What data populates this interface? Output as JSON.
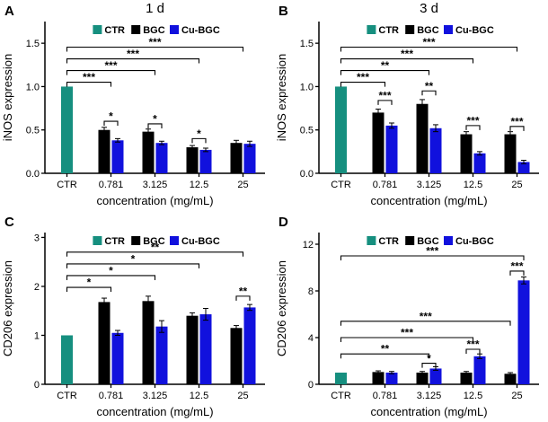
{
  "figure": {
    "background": "#ffffff",
    "colors": {
      "ctr": "#168f7f",
      "bgc": "#000000",
      "cu_bgc": "#1111dd"
    }
  },
  "chart_data": [
    {
      "id": "A",
      "panel_letter": "A",
      "title": "1 d",
      "type": "bar",
      "ylabel": "iNOS expression",
      "xlabel": "concentration (mg/mL)",
      "ylim": [
        0,
        1.75
      ],
      "grid": false,
      "legend_position": "top-inside",
      "yticks": [
        {
          "v": 0,
          "label": "0.0"
        },
        {
          "v": 0.5,
          "label": "0.5"
        },
        {
          "v": 1.0,
          "label": "1.0"
        },
        {
          "v": 1.5,
          "label": "1.5"
        }
      ],
      "categories": [
        "CTR",
        "0.781",
        "3.125",
        "12.5",
        "25"
      ],
      "series": [
        {
          "name": "CTR",
          "color": "#168f7f",
          "values": [
            1.0,
            null,
            null,
            null,
            null
          ],
          "errors": [
            0,
            null,
            null,
            null,
            null
          ]
        },
        {
          "name": "BGC",
          "color": "#000000",
          "values": [
            null,
            0.5,
            0.48,
            0.3,
            0.35
          ],
          "errors": [
            null,
            0.03,
            0.03,
            0.02,
            0.03
          ]
        },
        {
          "name": "Cu-BGC",
          "color": "#1111dd",
          "values": [
            null,
            0.38,
            0.35,
            0.27,
            0.34
          ],
          "errors": [
            null,
            0.02,
            0.02,
            0.02,
            0.03
          ]
        }
      ],
      "brackets": [
        {
          "c1": 0,
          "s1": 0,
          "c2": 1,
          "s2": 1.5,
          "y": 1.05,
          "label": "***"
        },
        {
          "c1": 0,
          "s1": 0,
          "c2": 2,
          "s2": 1.5,
          "y": 1.185,
          "label": "***"
        },
        {
          "c1": 0,
          "s1": 0,
          "c2": 3,
          "s2": 1.5,
          "y": 1.32,
          "label": "***"
        },
        {
          "c1": 0,
          "s1": 0,
          "c2": 4,
          "s2": 1.5,
          "y": 1.455,
          "label": "***"
        },
        {
          "c1": 1,
          "s1": 1,
          "c2": 1,
          "s2": 2,
          "y": 0.6,
          "label": "*"
        },
        {
          "c1": 2,
          "s1": 1,
          "c2": 2,
          "s2": 2,
          "y": 0.57,
          "label": "*"
        },
        {
          "c1": 3,
          "s1": 1,
          "c2": 3,
          "s2": 2,
          "y": 0.4,
          "label": "*"
        }
      ]
    },
    {
      "id": "B",
      "panel_letter": "B",
      "title": "3 d",
      "type": "bar",
      "ylabel": "iNOS expression",
      "xlabel": "concentration (mg/mL)",
      "ylim": [
        0,
        1.75
      ],
      "grid": false,
      "legend_position": "top-inside",
      "yticks": [
        {
          "v": 0,
          "label": "0.0"
        },
        {
          "v": 0.5,
          "label": "0.5"
        },
        {
          "v": 1.0,
          "label": "1.0"
        },
        {
          "v": 1.5,
          "label": "1.5"
        }
      ],
      "categories": [
        "CTR",
        "0.781",
        "3.125",
        "12.5",
        "25"
      ],
      "series": [
        {
          "name": "CTR",
          "color": "#168f7f",
          "values": [
            1.0,
            null,
            null,
            null,
            null
          ],
          "errors": [
            0,
            null,
            null,
            null,
            null
          ]
        },
        {
          "name": "BGC",
          "color": "#000000",
          "values": [
            null,
            0.7,
            0.8,
            0.45,
            0.45
          ],
          "errors": [
            null,
            0.04,
            0.05,
            0.03,
            0.03
          ]
        },
        {
          "name": "Cu-BGC",
          "color": "#1111dd",
          "values": [
            null,
            0.55,
            0.52,
            0.23,
            0.13
          ],
          "errors": [
            null,
            0.03,
            0.04,
            0.02,
            0.02
          ]
        }
      ],
      "brackets": [
        {
          "c1": 0,
          "s1": 0,
          "c2": 1,
          "s2": 1.5,
          "y": 1.05,
          "label": "***"
        },
        {
          "c1": 0,
          "s1": 0,
          "c2": 2,
          "s2": 1.5,
          "y": 1.185,
          "label": "**"
        },
        {
          "c1": 0,
          "s1": 0,
          "c2": 3,
          "s2": 1.5,
          "y": 1.32,
          "label": "***"
        },
        {
          "c1": 0,
          "s1": 0,
          "c2": 4,
          "s2": 1.5,
          "y": 1.455,
          "label": "***"
        },
        {
          "c1": 1,
          "s1": 1,
          "c2": 1,
          "s2": 2,
          "y": 0.84,
          "label": "***"
        },
        {
          "c1": 2,
          "s1": 1,
          "c2": 2,
          "s2": 2,
          "y": 0.95,
          "label": "**"
        },
        {
          "c1": 3,
          "s1": 1,
          "c2": 3,
          "s2": 2,
          "y": 0.55,
          "label": "***"
        },
        {
          "c1": 4,
          "s1": 1,
          "c2": 4,
          "s2": 2,
          "y": 0.54,
          "label": "***"
        }
      ]
    },
    {
      "id": "C",
      "panel_letter": "C",
      "title": "",
      "type": "bar",
      "ylabel": "CD206 expression",
      "xlabel": "concentration (mg/mL)",
      "ylim": [
        0,
        3.1
      ],
      "grid": false,
      "legend_position": "top-inside",
      "yticks": [
        {
          "v": 0,
          "label": "0"
        },
        {
          "v": 1,
          "label": "1"
        },
        {
          "v": 2,
          "label": "2"
        },
        {
          "v": 3,
          "label": "3"
        }
      ],
      "categories": [
        "CTR",
        "0.781",
        "3.125",
        "12.5",
        "25"
      ],
      "series": [
        {
          "name": "CTR",
          "color": "#168f7f",
          "values": [
            1.0,
            null,
            null,
            null,
            null
          ],
          "errors": [
            0,
            null,
            null,
            null,
            null
          ]
        },
        {
          "name": "BGC",
          "color": "#000000",
          "values": [
            null,
            1.68,
            1.7,
            1.4,
            1.15
          ],
          "errors": [
            null,
            0.08,
            0.1,
            0.06,
            0.05
          ]
        },
        {
          "name": "Cu-BGC",
          "color": "#1111dd",
          "values": [
            null,
            1.05,
            1.18,
            1.43,
            1.57
          ],
          "errors": [
            null,
            0.05,
            0.12,
            0.12,
            0.06
          ]
        }
      ],
      "brackets": [
        {
          "c1": 0,
          "s1": 0,
          "c2": 1,
          "s2": 1.5,
          "y": 1.98,
          "label": "*"
        },
        {
          "c1": 0,
          "s1": 0,
          "c2": 2,
          "s2": 1.5,
          "y": 2.22,
          "label": "*"
        },
        {
          "c1": 0,
          "s1": 0,
          "c2": 3,
          "s2": 1.5,
          "y": 2.46,
          "label": "*"
        },
        {
          "c1": 0,
          "s1": 0,
          "c2": 4,
          "s2": 1.5,
          "y": 2.7,
          "label": "**"
        },
        {
          "c1": 4,
          "s1": 1,
          "c2": 4,
          "s2": 2,
          "y": 1.8,
          "label": "**"
        }
      ]
    },
    {
      "id": "D",
      "panel_letter": "D",
      "title": "",
      "type": "bar",
      "ylabel": "CD206 expression",
      "xlabel": "concentration (mg/mL)",
      "ylim": [
        0,
        13
      ],
      "grid": false,
      "legend_position": "top-inside",
      "yticks": [
        {
          "v": 0,
          "label": "0"
        },
        {
          "v": 4,
          "label": "4"
        },
        {
          "v": 8,
          "label": "8"
        },
        {
          "v": 12,
          "label": "12"
        }
      ],
      "categories": [
        "CTR",
        "0.781",
        "3.125",
        "12.5",
        "25"
      ],
      "series": [
        {
          "name": "CTR",
          "color": "#168f7f",
          "values": [
            1.0,
            null,
            null,
            null,
            null
          ],
          "errors": [
            0,
            null,
            null,
            null,
            null
          ]
        },
        {
          "name": "BGC",
          "color": "#000000",
          "values": [
            null,
            1.05,
            1.0,
            1.0,
            0.9
          ],
          "errors": [
            null,
            0.1,
            0.1,
            0.1,
            0.1
          ]
        },
        {
          "name": "Cu-BGC",
          "color": "#1111dd",
          "values": [
            null,
            1.0,
            1.35,
            2.4,
            8.9
          ],
          "errors": [
            null,
            0.1,
            0.15,
            0.2,
            0.3
          ]
        }
      ],
      "brackets": [
        {
          "c1": 0,
          "s1": 0,
          "c2": 2,
          "s2": 1.5,
          "y": 2.6,
          "label": "**"
        },
        {
          "c1": 0,
          "s1": 0,
          "c2": 3,
          "s2": 1.5,
          "y": 4.0,
          "label": "***"
        },
        {
          "c1": 0,
          "s1": 0,
          "c2": 4,
          "s2": 1,
          "y": 5.4,
          "label": "***"
        },
        {
          "c1": 0,
          "s1": 0,
          "c2": 4,
          "s2": 2,
          "y": 11.0,
          "label": "***"
        },
        {
          "c1": 2,
          "s1": 1,
          "c2": 2,
          "s2": 2,
          "y": 1.8,
          "label": "*"
        },
        {
          "c1": 3,
          "s1": 1,
          "c2": 3,
          "s2": 2,
          "y": 3.0,
          "label": "***"
        },
        {
          "c1": 4,
          "s1": 1,
          "c2": 4,
          "s2": 2,
          "y": 9.7,
          "label": "***"
        }
      ]
    }
  ]
}
